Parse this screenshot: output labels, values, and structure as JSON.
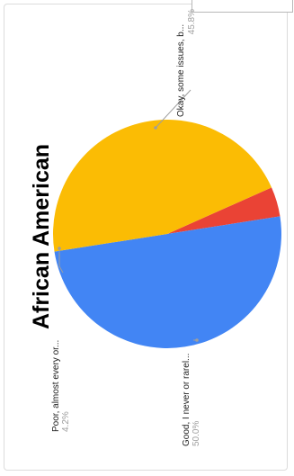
{
  "chart_data": {
    "type": "pie",
    "title": "African American",
    "slices": [
      {
        "label": "Okay, some issues, b...",
        "value": 45.8,
        "pct_label": "45.8%",
        "color": "#fbbc04"
      },
      {
        "label": "Good, I never or rarel...",
        "value": 50.0,
        "pct_label": "50.0%",
        "color": "#4285f4"
      },
      {
        "label": "Poor, almost every or...",
        "value": 4.2,
        "pct_label": "4.2%",
        "color": "#ea4335"
      }
    ],
    "legend": "none",
    "orientation": "rotated-90-ccw"
  }
}
